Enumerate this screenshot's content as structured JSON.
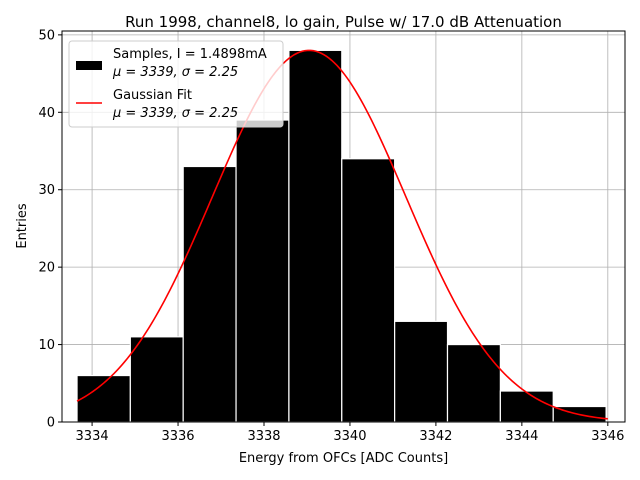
{
  "chart_data": {
    "type": "bar",
    "title": "Run 1998, channel8, lo gain, Pulse w/ 17.0 dB Attenuation",
    "xlabel": "Energy from OFCs [ADC Counts]",
    "ylabel": "Entries",
    "xlim": [
      3333.3,
      3346.4
    ],
    "ylim": [
      0,
      50.5
    ],
    "xticks": [
      3334,
      3336,
      3338,
      3340,
      3342,
      3344,
      3346
    ],
    "yticks": [
      0,
      10,
      20,
      30,
      40,
      50
    ],
    "grid": true,
    "legend_position": "top-left",
    "bins": [
      {
        "x0": 3333.65,
        "x1": 3334.89,
        "count": 6
      },
      {
        "x0": 3334.89,
        "x1": 3336.12,
        "count": 11
      },
      {
        "x0": 3336.12,
        "x1": 3337.35,
        "count": 33
      },
      {
        "x0": 3337.35,
        "x1": 3338.58,
        "count": 39
      },
      {
        "x0": 3338.58,
        "x1": 3339.81,
        "count": 48
      },
      {
        "x0": 3339.81,
        "x1": 3341.04,
        "count": 34
      },
      {
        "x0": 3341.04,
        "x1": 3342.27,
        "count": 13
      },
      {
        "x0": 3342.27,
        "x1": 3343.5,
        "count": 10
      },
      {
        "x0": 3343.5,
        "x1": 3344.73,
        "count": 4
      },
      {
        "x0": 3344.73,
        "x1": 3345.96,
        "count": 2
      }
    ],
    "series": [
      {
        "name": "Samples, I = 1.4898mA",
        "stats": "μ = 3339, σ = 2.25",
        "kind": "histogram",
        "color": "#000000"
      },
      {
        "name": "Gaussian Fit",
        "stats": "μ = 3339, σ = 2.25",
        "kind": "line",
        "color": "#ff0000",
        "fit": {
          "mu": 3339.05,
          "sigma": 2.25,
          "amplitude": 48.0,
          "x_start": 3333.65,
          "x_end": 3346.0
        }
      }
    ]
  }
}
